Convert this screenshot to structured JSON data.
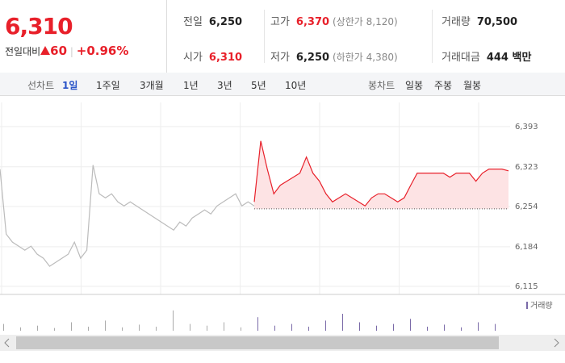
{
  "header": {
    "price": "6,310",
    "change_label": "전일대비",
    "change": "60",
    "change_pct": "+0.96%"
  },
  "info": [
    [
      {
        "label": "전일",
        "value": "6,250"
      },
      {
        "label": "고가",
        "value": "6,370",
        "note": "(상한가 8,120)"
      },
      {
        "label": "거래량",
        "value": "70,500"
      }
    ],
    [
      {
        "label": "시가",
        "value": "6,310"
      },
      {
        "label": "저가",
        "value": "6,250",
        "note": "(하한가 4,380)"
      },
      {
        "label": "거래대금",
        "value": "444 백만"
      }
    ]
  ],
  "tabs": {
    "line_label": "선차트",
    "line": [
      "1일",
      "1주일",
      "3개월",
      "1년",
      "3년",
      "5년",
      "10년"
    ],
    "selected_index": 0,
    "candle_label": "봉차트",
    "candle": [
      "일봉",
      "주봉",
      "월봉"
    ]
  },
  "chart_data": [
    {
      "type": "line",
      "ylim": [
        6101,
        6435
      ],
      "yticks": [
        {
          "value": 6393,
          "label": "6,393"
        },
        {
          "value": 6323,
          "label": "6,323"
        },
        {
          "value": 6254,
          "label": "6,254"
        },
        {
          "value": 6184,
          "label": "6,184"
        },
        {
          "value": 6115,
          "label": "6,115"
        }
      ],
      "baseline": 6250,
      "series": [
        {
          "color": "#bbbbbb",
          "values": [
            6319,
            6206,
            6192,
            6185,
            6178,
            6185,
            6171,
            6164,
            6150,
            6157,
            6164,
            6171,
            6192,
            6164,
            6178,
            6326,
            6276,
            6269,
            6276,
            6262,
            6255,
            6262,
            6255,
            6248,
            6241,
            6234,
            6227,
            6220,
            6213,
            6227,
            6220,
            6234,
            6241,
            6248,
            6241,
            6255,
            6262,
            6269,
            6276,
            6255,
            6262,
            6255
          ]
        },
        {
          "color": "#e8202a",
          "values": [
            6262,
            6368,
            6319,
            6276,
            6291,
            6298,
            6305,
            6312,
            6340,
            6312,
            6298,
            6276,
            6262,
            6269,
            6276,
            6269,
            6262,
            6255,
            6269,
            6276,
            6276,
            6269,
            6262,
            6269,
            6291,
            6312,
            6312,
            6312,
            6312,
            6312,
            6305,
            6312,
            6312,
            6312,
            6298,
            6312,
            6319,
            6319,
            6319,
            6316
          ]
        }
      ]
    },
    {
      "type": "bar",
      "legend": "거래량",
      "color": "#7a6aa8",
      "ylim": [
        0,
        100
      ],
      "values": [
        20,
        10,
        15,
        8,
        25,
        12,
        30,
        10,
        18,
        12,
        60,
        20,
        15,
        25,
        10,
        40,
        15,
        20,
        12,
        30,
        50,
        25,
        15,
        20,
        35,
        12,
        18,
        10,
        25,
        20
      ]
    }
  ]
}
